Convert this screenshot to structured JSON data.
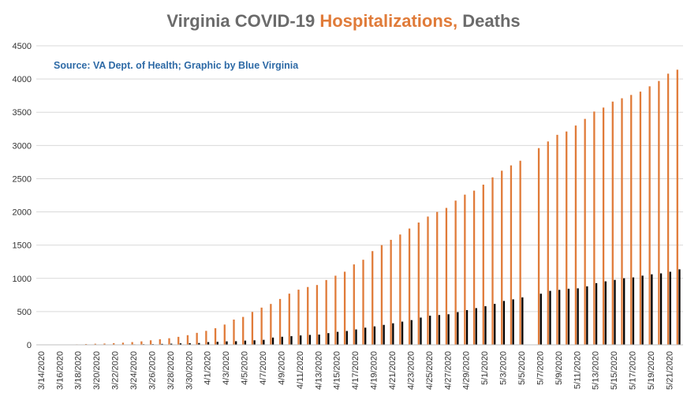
{
  "title_parts": {
    "part1": "Virginia COVID-19 ",
    "part2": "Hospitalizations,",
    "part3": " Deaths"
  },
  "source_note": "Source: VA Dept. of Health; Graphic by Blue Virginia",
  "colors": {
    "hospitalizations": "#e07b39",
    "deaths": "#000000",
    "grid": "#d9d9d9",
    "title_gray": "#6b6b6b",
    "source_blue": "#2e6aa6"
  },
  "chart_data": {
    "type": "bar",
    "title": "Virginia COVID-19 Hospitalizations, Deaths",
    "xlabel": "",
    "ylabel": "",
    "ylim": [
      0,
      4500
    ],
    "yticks": [
      0,
      500,
      1000,
      1500,
      2000,
      2500,
      3000,
      3500,
      4000,
      4500
    ],
    "grid": true,
    "legend": "none",
    "categories": [
      "3/14/2020",
      "3/15/2020",
      "3/16/2020",
      "3/17/2020",
      "3/18/2020",
      "3/19/2020",
      "3/20/2020",
      "3/21/2020",
      "3/22/2020",
      "3/23/2020",
      "3/24/2020",
      "3/25/2020",
      "3/26/2020",
      "3/27/2020",
      "3/28/2020",
      "3/29/2020",
      "3/30/2020",
      "3/31/2020",
      "4/1/2020",
      "4/2/2020",
      "4/3/2020",
      "4/4/2020",
      "4/5/2020",
      "4/6/2020",
      "4/7/2020",
      "4/8/2020",
      "4/9/2020",
      "4/10/2020",
      "4/11/2020",
      "4/12/2020",
      "4/13/2020",
      "4/14/2020",
      "4/15/2020",
      "4/16/2020",
      "4/17/2020",
      "4/18/2020",
      "4/19/2020",
      "4/20/2020",
      "4/21/2020",
      "4/22/2020",
      "4/23/2020",
      "4/24/2020",
      "4/25/2020",
      "4/26/2020",
      "4/27/2020",
      "4/28/2020",
      "4/29/2020",
      "4/30/2020",
      "5/1/2020",
      "5/2/2020",
      "5/3/2020",
      "5/4/2020",
      "5/5/2020",
      "5/6/2020",
      "5/7/2020",
      "5/8/2020",
      "5/9/2020",
      "5/10/2020",
      "5/11/2020",
      "5/12/2020",
      "5/13/2020",
      "5/14/2020",
      "5/15/2020",
      "5/16/2020",
      "5/17/2020",
      "5/18/2020",
      "5/19/2020",
      "5/20/2020",
      "5/21/2020",
      "5/22/2020"
    ],
    "tick_labels": [
      "3/14/2020",
      "3/16/2020",
      "3/18/2020",
      "3/20/2020",
      "3/22/2020",
      "3/24/2020",
      "3/26/2020",
      "3/28/2020",
      "3/30/2020",
      "4/1/2020",
      "4/3/2020",
      "4/5/2020",
      "4/7/2020",
      "4/9/2020",
      "4/11/2020",
      "4/13/2020",
      "4/15/2020",
      "4/17/2020",
      "4/19/2020",
      "4/21/2020",
      "4/23/2020",
      "4/25/2020",
      "4/27/2020",
      "4/29/2020",
      "5/1/2020",
      "5/3/2020",
      "5/5/2020",
      "5/7/2020",
      "5/9/2020",
      "5/11/2020",
      "5/13/2020",
      "5/15/2020",
      "5/17/2020",
      "5/19/2020",
      "5/21/2020"
    ],
    "series": [
      {
        "key": "hospitalizations",
        "values": [
          0,
          1,
          2,
          3,
          7,
          12,
          16,
          19,
          25,
          32,
          41,
          52,
          68,
          84,
          99,
          120,
          145,
          180,
          210,
          250,
          305,
          380,
          420,
          495,
          560,
          615,
          690,
          770,
          830,
          870,
          900,
          975,
          1040,
          1100,
          1210,
          1280,
          1410,
          1500,
          1580,
          1660,
          1750,
          1840,
          1930,
          2000,
          2060,
          2170,
          2260,
          2320,
          2410,
          2520,
          2620,
          2700,
          2770,
          null,
          2960,
          3060,
          3160,
          3210,
          3300,
          3400,
          3510,
          3570,
          3660,
          3710,
          3760,
          3810,
          3890,
          3970,
          4080,
          4140
        ]
      },
      {
        "key": "deaths",
        "values": [
          0,
          0,
          1,
          1,
          2,
          2,
          2,
          3,
          3,
          5,
          7,
          9,
          10,
          14,
          17,
          22,
          25,
          27,
          41,
          45,
          52,
          54,
          63,
          68,
          75,
          109,
          121,
          130,
          141,
          149,
          154,
          176,
          195,
          208,
          231,
          258,
          277,
          300,
          324,
          349,
          372,
          410,
          438,
          448,
          460,
          492,
          522,
          552,
          581,
          616,
          660,
          684,
          714,
          null,
          769,
          812,
          827,
          844,
          850,
          880,
          928,
          955,
          977,
          1002,
          1014,
          1041,
          1061,
          1075,
          1099,
          1136
        ]
      }
    ]
  }
}
